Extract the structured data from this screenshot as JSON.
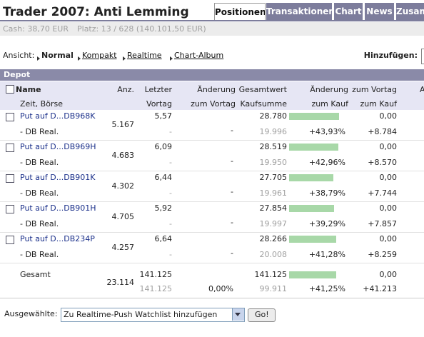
{
  "header": {
    "title": "Trader 2007: Anti Lemming",
    "tabs": [
      "Positionen",
      "Transaktionen",
      "Chart",
      "News",
      "Zusamm"
    ]
  },
  "account": {
    "cash": "Cash: 38,70 EUR",
    "rank": "Platz: 13 / 628 (140.101,50 EUR)"
  },
  "views": {
    "label": "Ansicht:",
    "items": [
      "Normal",
      "Kompakt",
      "Realtime",
      "Chart-Album"
    ],
    "add_label": "Hinzufügen:"
  },
  "depot": {
    "title": "Depot",
    "columns": [
      [
        "Name",
        "Zeit, Börse"
      ],
      [
        "Anz."
      ],
      [
        "Letzter",
        "Vortag"
      ],
      [
        "Änderung",
        "zum Vortag"
      ],
      [
        "Gesamtwert",
        "Kaufsumme"
      ],
      [
        "Änderung",
        "zum Kauf"
      ],
      [
        "zum Vortag",
        "zum Kauf"
      ],
      [
        "A"
      ]
    ],
    "rows": [
      {
        "name": "Put auf D...DB968K",
        "exchange": "- DB Real.",
        "quantity": "5.167",
        "last": "5,57",
        "prev": "-",
        "change_day": "-",
        "total": "28.780",
        "cost": "19.996",
        "change_buy": "+43,93%",
        "pl_day": "0,00",
        "pl_buy": "+8.784"
      },
      {
        "name": "Put auf D...DB969H",
        "exchange": "- DB Real.",
        "quantity": "4.683",
        "last": "6,09",
        "prev": "-",
        "change_day": "-",
        "total": "28.519",
        "cost": "19.950",
        "change_buy": "+42,96%",
        "pl_day": "0,00",
        "pl_buy": "+8.570"
      },
      {
        "name": "Put auf D...DB901K",
        "exchange": "- DB Real.",
        "quantity": "4.302",
        "last": "6,44",
        "prev": "-",
        "change_day": "-",
        "total": "27.705",
        "cost": "19.961",
        "change_buy": "+38,79%",
        "pl_day": "0,00",
        "pl_buy": "+7.744"
      },
      {
        "name": "Put auf D...DB901H",
        "exchange": "- DB Real.",
        "quantity": "4.705",
        "last": "5,92",
        "prev": "-",
        "change_day": "-",
        "total": "27.854",
        "cost": "19.997",
        "change_buy": "+39,29%",
        "pl_day": "0,00",
        "pl_buy": "+7.857"
      },
      {
        "name": "Put auf D...DB234P",
        "exchange": "- DB Real.",
        "quantity": "4.257",
        "last": "6,64",
        "prev": "-",
        "change_day": "-",
        "total": "28.266",
        "cost": "20.008",
        "change_buy": "+41,28%",
        "pl_day": "0,00",
        "pl_buy": "+8.259"
      }
    ],
    "total": {
      "label": "Gesamt",
      "quantity": "23.114",
      "last": "141.125",
      "prev": "141.125",
      "change_day": "0,00%",
      "total": "141.125",
      "cost": "99.911",
      "change_buy": "+41,25%",
      "pl_day": "0,00",
      "pl_buy": "+41.213"
    }
  },
  "footer": {
    "label": "Ausgewählte:",
    "select": "Zu Realtime-Push Watchlist hinzufügen",
    "button": "Go!"
  }
}
